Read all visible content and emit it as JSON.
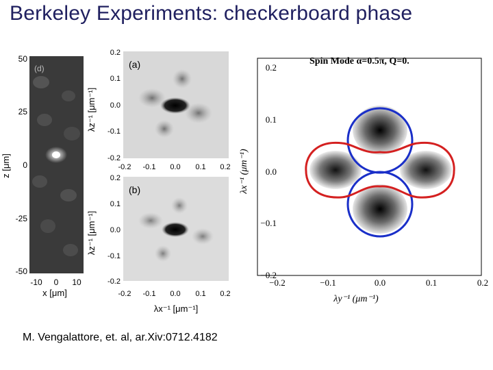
{
  "slide": {
    "title": "Berkeley Experiments: checkerboard phase",
    "citation": "M. Vengalattore, et. al, ar.Xiv:0712.4182"
  },
  "panel_d": {
    "label": "(d)",
    "y_ticks": [
      "50",
      "25",
      "0",
      "-25",
      "-50"
    ],
    "x_ticks": [
      "-10",
      "0",
      "10"
    ],
    "y_label": "z [μm]",
    "x_label": "x [μm]"
  },
  "panel_a": {
    "label": "(a)",
    "y_ticks": [
      "0.2",
      "0.1",
      "0.0",
      "-0.1",
      "-0.2"
    ],
    "x_ticks": [
      "-0.2",
      "-0.1",
      "0.0",
      "0.1",
      "0.2"
    ]
  },
  "panel_b": {
    "label": "(b)",
    "y_ticks": [
      "0.2",
      "0.1",
      "0.0",
      "-0.1",
      "-0.2"
    ],
    "x_ticks": [
      "-0.2",
      "-0.1",
      "0.0",
      "0.1",
      "0.2"
    ]
  },
  "ab_labels": {
    "y_label": "λz⁻¹ [μm⁻¹]",
    "x_label": "λx⁻¹ [μm⁻¹]"
  },
  "theory": {
    "title": "Spin Mode   α=0.5π, Q=0.",
    "y_ticks": [
      "0.2",
      "0.1",
      "0.0",
      "−0.1",
      "−0.2"
    ],
    "x_ticks": [
      "−0.2",
      "−0.1",
      "0.0",
      "0.1",
      "0.2"
    ],
    "y_label": "λx⁻¹ (μm⁻¹)",
    "x_label": "λy⁻¹ (μm⁻¹)",
    "blue_color": "#1a2fc8",
    "red_color": "#d42020"
  }
}
